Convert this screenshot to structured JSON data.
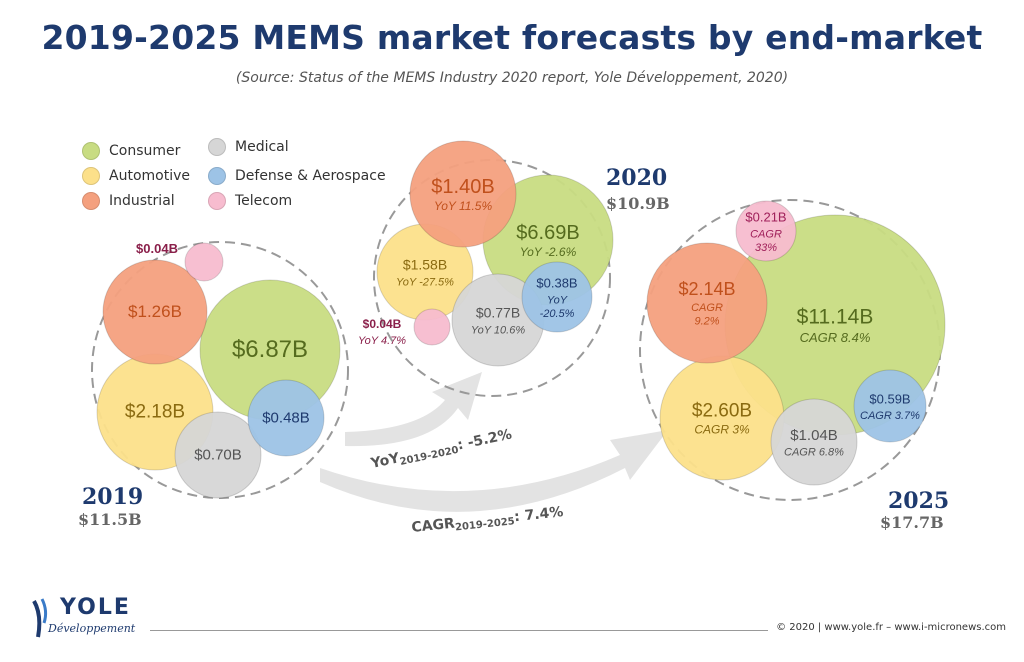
{
  "title": "2019-2025 MEMS market forecasts by end-market",
  "subtitle": "(Source: Status of the MEMS Industry 2020 report, Yole Développement, 2020)",
  "colors": {
    "consumer": "#c8dc82",
    "automotive": "#fce08a",
    "industrial": "#f4a07e",
    "medical": "#d6d6d6",
    "defense": "#9dc3e6",
    "telecom": "#f7bccf",
    "title": "#1e3a6e"
  },
  "legend": [
    {
      "key": "consumer",
      "label": "Consumer"
    },
    {
      "key": "automotive",
      "label": "Automotive"
    },
    {
      "key": "industrial",
      "label": "Industrial"
    },
    {
      "key": "medical",
      "label": "Medical"
    },
    {
      "key": "defense",
      "label": "Defense & Aerospace"
    },
    {
      "key": "telecom",
      "label": "Telecom"
    }
  ],
  "chart_data": {
    "type": "bubble",
    "title": "2019-2025 MEMS market forecasts by end-market",
    "unit": "$B",
    "years": [
      {
        "year": "2019",
        "total": "$11.5B",
        "segments": [
          {
            "segment": "Consumer",
            "value": 6.87,
            "label": "$6.87B"
          },
          {
            "segment": "Automotive",
            "value": 2.18,
            "label": "$2.18B"
          },
          {
            "segment": "Industrial",
            "value": 1.26,
            "label": "$1.26B"
          },
          {
            "segment": "Medical",
            "value": 0.7,
            "label": "$0.70B"
          },
          {
            "segment": "Defense & Aerospace",
            "value": 0.48,
            "label": "$0.48B"
          },
          {
            "segment": "Telecom",
            "value": 0.04,
            "label": "$0.04B"
          }
        ]
      },
      {
        "year": "2020",
        "total": "$10.9B",
        "segments": [
          {
            "segment": "Consumer",
            "value": 6.69,
            "label": "$6.69B",
            "growth": "YoY -2.6%"
          },
          {
            "segment": "Automotive",
            "value": 1.58,
            "label": "$1.58B",
            "growth": "YoY -27.5%"
          },
          {
            "segment": "Industrial",
            "value": 1.4,
            "label": "$1.40B",
            "growth": "YoY 11.5%"
          },
          {
            "segment": "Medical",
            "value": 0.77,
            "label": "$0.77B",
            "growth": "YoY 10.6%"
          },
          {
            "segment": "Defense & Aerospace",
            "value": 0.38,
            "label": "$0.38B",
            "growth": "YoY -20.5%"
          },
          {
            "segment": "Telecom",
            "value": 0.04,
            "label": "$0.04B",
            "growth": "YoY 4.7%"
          }
        ]
      },
      {
        "year": "2025",
        "total": "$17.7B",
        "segments": [
          {
            "segment": "Consumer",
            "value": 11.14,
            "label": "$11.14B",
            "growth": "CAGR 8.4%"
          },
          {
            "segment": "Automotive",
            "value": 2.6,
            "label": "$2.60B",
            "growth": "CAGR 3%"
          },
          {
            "segment": "Industrial",
            "value": 2.14,
            "label": "$2.14B",
            "growth": "CAGR 9.2%"
          },
          {
            "segment": "Medical",
            "value": 1.04,
            "label": "$1.04B",
            "growth": "CAGR 6.8%"
          },
          {
            "segment": "Defense & Aerospace",
            "value": 0.59,
            "label": "$0.59B",
            "growth": "CAGR 3.7%"
          },
          {
            "segment": "Telecom",
            "value": 0.21,
            "label": "$0.21B",
            "growth": "CAGR 33%"
          }
        ]
      }
    ],
    "transitions": [
      {
        "prefix": "YoY",
        "subscript": "2019-2020",
        "value": ": -5.2%"
      },
      {
        "prefix": "CAGR",
        "subscript": "2019-2025",
        "value": ": 7.4%"
      }
    ]
  },
  "footer": {
    "logo_name": "YOLE",
    "logo_sub": "Développement",
    "copyright": "© 2020 | www.yole.fr – www.i-micronews.com"
  }
}
